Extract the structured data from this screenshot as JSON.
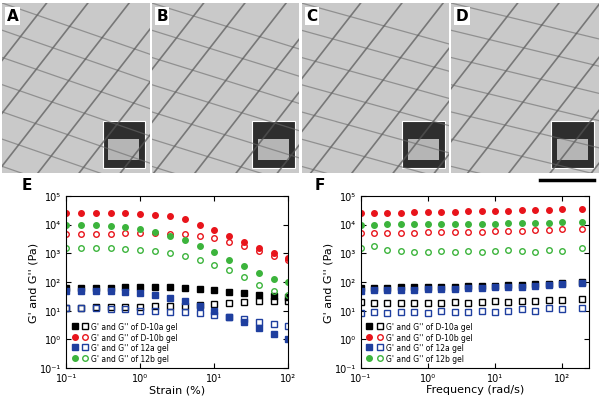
{
  "images": [
    {
      "label": "A"
    },
    {
      "label": "B"
    },
    {
      "label": "C"
    },
    {
      "label": "D"
    }
  ],
  "chart_data": [
    {
      "type": "scatter",
      "title": "E",
      "x_label": "Strain (%)",
      "y_label": "G' and G'' (Pa)",
      "log": true,
      "legend": "lower left",
      "x": [
        0.1,
        0.158,
        0.251,
        0.398,
        0.631,
        1,
        1.58,
        2.51,
        3.98,
        6.31,
        10,
        15.8,
        25.1,
        39.8,
        63.1,
        100
      ],
      "xlim": [
        0.1,
        100
      ],
      "xticks": [
        {
          "value": 0.1,
          "label": "10⁻¹"
        },
        {
          "value": 1,
          "label": "10⁰"
        },
        {
          "value": 10,
          "label": "10¹"
        },
        {
          "value": 100,
          "label": "10²"
        }
      ],
      "ylim": [
        0.1,
        100000
      ],
      "yticks": [
        {
          "value": 0.1,
          "label": "10⁻¹"
        },
        {
          "value": 1,
          "label": "10⁰"
        },
        {
          "value": 10,
          "label": "10¹"
        },
        {
          "value": 100,
          "label": "10²"
        },
        {
          "value": 1000,
          "label": "10³"
        },
        {
          "value": 10000,
          "label": "10⁴"
        },
        {
          "value": 100000,
          "label": "10⁵"
        }
      ],
      "series": [
        {
          "name": "G' and G'' of D-10a gel",
          "color": "#000000",
          "marker": "s",
          "values": [
            60,
            62,
            63,
            63,
            64,
            65,
            65,
            64,
            62,
            58,
            52,
            45,
            40,
            35,
            32,
            30
          ],
          "loss_values": [
            12,
            12,
            13,
            13,
            13,
            13,
            14,
            14,
            15,
            16,
            17,
            18,
            20,
            21,
            22,
            22
          ]
        },
        {
          "name": "G' and G'' of D-10b gel",
          "color": "#e8141b",
          "marker": "o",
          "values": [
            25000,
            25000,
            25500,
            25500,
            25000,
            24000,
            22000,
            19000,
            15000,
            10000,
            6500,
            4000,
            2500,
            1500,
            1000,
            700
          ],
          "loss_values": [
            4500,
            4600,
            4700,
            4800,
            5000,
            5000,
            5000,
            4800,
            4500,
            4000,
            3300,
            2500,
            1800,
            1200,
            800,
            600
          ]
        },
        {
          "name": "G' and G'' of 12a gel",
          "color": "#1f3f9f",
          "marker": "s",
          "values": [
            50,
            50,
            50,
            48,
            45,
            40,
            35,
            28,
            22,
            15,
            10,
            6,
            4,
            2.5,
            1.5,
            1
          ],
          "loss_values": [
            12,
            12,
            12,
            11,
            11,
            10,
            10,
            9,
            9,
            8,
            7,
            6,
            5,
            4,
            3.5,
            3
          ]
        },
        {
          "name": "G' and G'' of 12b gel",
          "color": "#3cb43c",
          "marker": "o",
          "values": [
            10000,
            10000,
            9500,
            9000,
            8000,
            7000,
            5500,
            4000,
            2800,
            1800,
            1100,
            600,
            350,
            200,
            130,
            100
          ],
          "loss_values": [
            1500,
            1500,
            1500,
            1500,
            1400,
            1300,
            1200,
            1000,
            800,
            600,
            400,
            250,
            150,
            80,
            50,
            35
          ]
        }
      ]
    },
    {
      "type": "scatter",
      "title": "F",
      "x_label": "Frequency (rad/s)",
      "y_label": "G' and G'' (Pa)",
      "log": true,
      "legend": "lower left",
      "x": [
        0.1,
        0.158,
        0.251,
        0.398,
        0.631,
        1,
        1.58,
        2.51,
        3.98,
        6.31,
        10,
        15.8,
        25.1,
        39.8,
        63.1,
        100,
        200
      ],
      "xlim": [
        0.1,
        250
      ],
      "xticks": [
        {
          "value": 0.1,
          "label": "10⁻¹"
        },
        {
          "value": 1,
          "label": "10⁰"
        },
        {
          "value": 10,
          "label": "10¹"
        },
        {
          "value": 100,
          "label": "10²"
        }
      ],
      "ylim": [
        0.1,
        100000
      ],
      "yticks": [
        {
          "value": 0.1,
          "label": "10⁻¹"
        },
        {
          "value": 1,
          "label": "10⁰"
        },
        {
          "value": 10,
          "label": "10¹"
        },
        {
          "value": 100,
          "label": "10²"
        },
        {
          "value": 1000,
          "label": "10³"
        },
        {
          "value": 10000,
          "label": "10⁴"
        },
        {
          "value": 100000,
          "label": "10⁵"
        }
      ],
      "series": [
        {
          "name": "G' and G'' of D-10a gel",
          "color": "#000000",
          "marker": "s",
          "values": [
            60,
            62,
            63,
            64,
            65,
            66,
            67,
            68,
            70,
            72,
            74,
            76,
            79,
            82,
            86,
            92,
            100
          ],
          "loss_values": [
            20,
            19,
            18,
            18,
            19,
            18,
            19,
            20,
            19,
            20,
            21,
            20,
            22,
            21,
            23,
            24,
            25
          ]
        },
        {
          "name": "G' and G'' of D-10b gel",
          "color": "#e8141b",
          "marker": "o",
          "values": [
            25000,
            25500,
            26000,
            26000,
            26500,
            27000,
            27500,
            28000,
            28500,
            29000,
            29500,
            30000,
            31000,
            32000,
            33000,
            34000,
            35000
          ],
          "loss_values": [
            5000,
            5000,
            5100,
            5200,
            5200,
            5300,
            5400,
            5500,
            5600,
            5700,
            5800,
            6000,
            6100,
            6300,
            6500,
            6800,
            7000
          ]
        },
        {
          "name": "G' and G'' of 12a gel",
          "color": "#1f3f9f",
          "marker": "s",
          "values": [
            50,
            51,
            52,
            53,
            54,
            55,
            56,
            58,
            60,
            62,
            64,
            66,
            68,
            72,
            76,
            82,
            90
          ],
          "loss_values": [
            8,
            9,
            8,
            9,
            9,
            8,
            10,
            9,
            9,
            10,
            9,
            10,
            11,
            10,
            12,
            11,
            12
          ]
        },
        {
          "name": "G' and G'' of 12b gel",
          "color": "#3cb43c",
          "marker": "o",
          "values": [
            10000,
            10000,
            10100,
            10200,
            10200,
            10300,
            10400,
            10500,
            10600,
            10700,
            10800,
            11000,
            11100,
            11300,
            11500,
            11800,
            12000
          ],
          "loss_values": [
            1500,
            1800,
            1300,
            1200,
            1100,
            1100,
            1200,
            1100,
            1200,
            1100,
            1200,
            1300,
            1200,
            1100,
            1300,
            1200,
            1500
          ]
        }
      ]
    }
  ]
}
